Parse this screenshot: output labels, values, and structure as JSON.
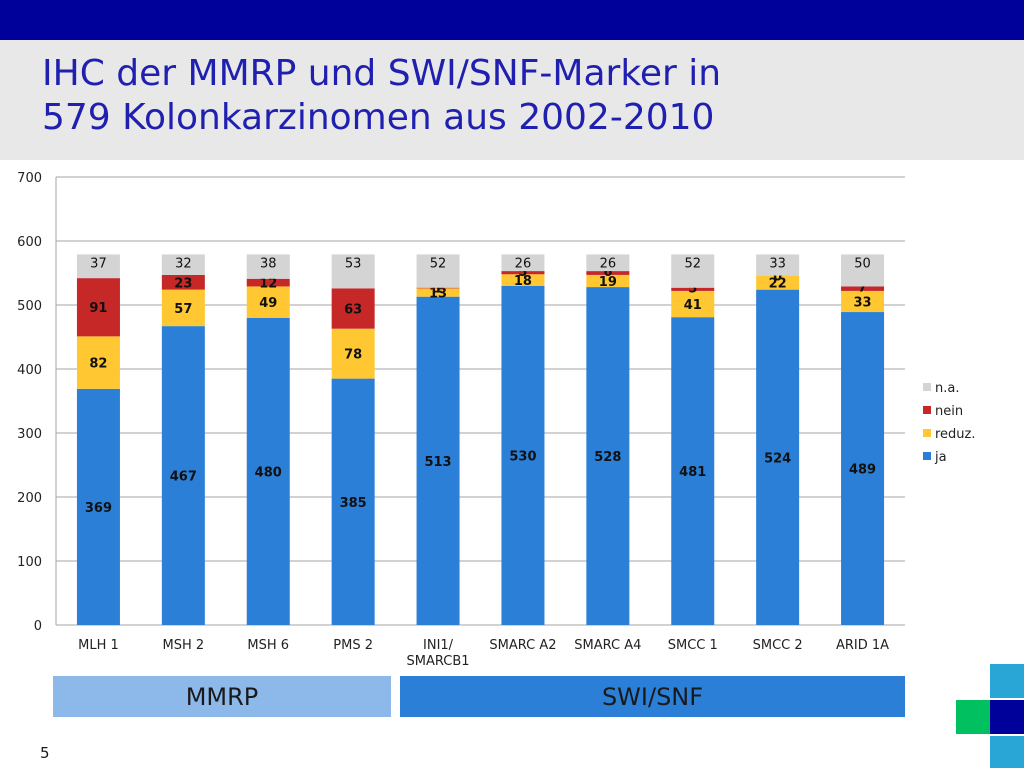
{
  "slide": {
    "title_line1": "IHC der MMRP und SWI/SNF-Marker in",
    "title_line2": "579 Kolonkarzinomen aus 2002-2010",
    "group_mmrp": "MMRP",
    "group_swisnf": "SWI/SNF",
    "page_number": "5"
  },
  "colors": {
    "topbar": "#00009a",
    "title_text": "#1f1fb0",
    "ja": "#2b7fd6",
    "reduz": "#ffc832",
    "nein": "#c62828",
    "na": "#d4d4d4",
    "mmrp_box": "#8db8ea",
    "swisnf_box": "#2b7fd6",
    "deco_green": "#00c060",
    "deco_teal": "#2aa6d6",
    "deco_navy": "#00009a"
  },
  "chart_data": {
    "type": "bar",
    "stacked": true,
    "categories": [
      "MLH 1",
      "MSH 2",
      "MSH 6",
      "PMS 2",
      "INI1/\nSMARCB1",
      "SMARC A2",
      "SMARC A4",
      "SMCC 1",
      "SMCC 2",
      "ARID 1A"
    ],
    "series": [
      {
        "name": "ja",
        "color": "#2b7fd6",
        "values": [
          369,
          467,
          480,
          385,
          513,
          530,
          528,
          481,
          524,
          489
        ]
      },
      {
        "name": "reduz.",
        "color": "#ffc832",
        "values": [
          82,
          57,
          49,
          78,
          13,
          18,
          19,
          41,
          22,
          33
        ]
      },
      {
        "name": "nein",
        "color": "#c62828",
        "values": [
          91,
          23,
          12,
          63,
          1,
          5,
          6,
          5,
          0,
          7
        ]
      },
      {
        "name": "n.a.",
        "color": "#d4d4d4",
        "values": [
          37,
          32,
          38,
          53,
          52,
          26,
          26,
          52,
          33,
          50
        ]
      }
    ],
    "ylim": [
      0,
      700
    ],
    "yticks": [
      0,
      100,
      200,
      300,
      400,
      500,
      600,
      700
    ],
    "title": "",
    "xlabel": "",
    "ylabel": "",
    "grid": true,
    "legend": {
      "placement": "right",
      "order": [
        "n.a.",
        "nein",
        "reduz.",
        "ja"
      ]
    }
  }
}
